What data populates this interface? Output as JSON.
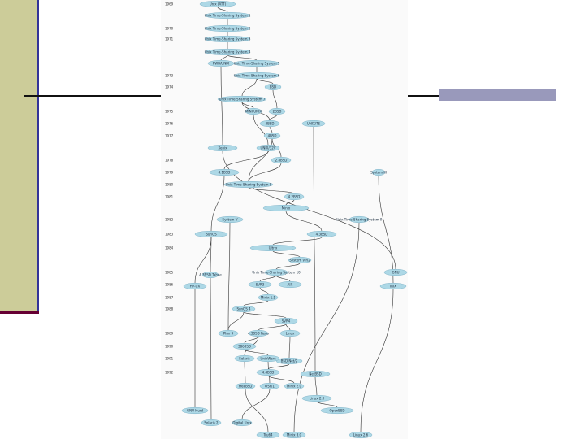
{
  "timeline": {
    "years": [
      "1969",
      "",
      "1970",
      "1971",
      "",
      "",
      "1973",
      "1974",
      "",
      "1975",
      "1976",
      "1977",
      "",
      "1978",
      "1979",
      "1980",
      "1981",
      "",
      "1982",
      "1983",
      "1984",
      "",
      "1985",
      "1986",
      "1987",
      "1988",
      "",
      "1989",
      "1990",
      "1991",
      "1992"
    ]
  },
  "nodes": [
    {
      "id": "n1",
      "label": "Unix (ATT)"
    },
    {
      "id": "n2",
      "label": "Unix Time-Sharing System 1"
    },
    {
      "id": "n3",
      "label": "Unix Time-Sharing System 2"
    },
    {
      "id": "n4",
      "label": "Unix Time-Sharing System 3"
    },
    {
      "id": "n5",
      "label": "Unix Time-Sharing System 4"
    },
    {
      "id": "n6",
      "label": "PWB/UNIX"
    },
    {
      "id": "n7",
      "label": "Unix Time-Sharing System 5"
    },
    {
      "id": "n8",
      "label": "Unix Time-Sharing System 6"
    },
    {
      "id": "n9",
      "label": "BSD"
    },
    {
      "id": "n10",
      "label": "Unix Time-Sharing System 7"
    },
    {
      "id": "n11",
      "label": "MINI-UNIX"
    },
    {
      "id": "n12",
      "label": "2BSD"
    },
    {
      "id": "n13",
      "label": "3BSD"
    },
    {
      "id": "n14",
      "label": "4BSD"
    },
    {
      "id": "n15",
      "label": "UNIX/TS"
    },
    {
      "id": "n16",
      "label": "Xenix"
    },
    {
      "id": "n17",
      "label": "UNIX/32V"
    },
    {
      "id": "n18",
      "label": "2.8BSD"
    },
    {
      "id": "n19",
      "label": "4.1BSD"
    },
    {
      "id": "n20",
      "label": "System III"
    },
    {
      "id": "n21",
      "label": "Unix Time-Sharing System 8"
    },
    {
      "id": "n22",
      "label": "4.2BSD"
    },
    {
      "id": "n23",
      "label": "Minix"
    },
    {
      "id": "n24",
      "label": "System V"
    },
    {
      "id": "n25",
      "label": "Unix Time-Sharing System 9"
    },
    {
      "id": "n26",
      "label": "SunOS"
    },
    {
      "id": "n27",
      "label": "4.3BSD"
    },
    {
      "id": "n28",
      "label": "Ultrix"
    },
    {
      "id": "n29",
      "label": "System V R2"
    },
    {
      "id": "n30",
      "label": "Unix Time-Sharing System 10"
    },
    {
      "id": "n31",
      "label": "GNU"
    },
    {
      "id": "n32",
      "label": "SVR3"
    },
    {
      "id": "n33",
      "label": "AIX"
    },
    {
      "id": "n34",
      "label": "HP-UX"
    },
    {
      "id": "n35",
      "label": "IRIX"
    },
    {
      "id": "n36",
      "label": "4.3BSD Tahoe"
    },
    {
      "id": "n37",
      "label": "Minix 1.5"
    },
    {
      "id": "n38",
      "label": "SunOS 4"
    },
    {
      "id": "n39",
      "label": "SVR4"
    },
    {
      "id": "n40",
      "label": "Plan 9"
    },
    {
      "id": "n41",
      "label": "4.3BSD Reno"
    },
    {
      "id": "n42",
      "label": "Linux"
    },
    {
      "id": "n43",
      "label": "386BSD"
    },
    {
      "id": "n44",
      "label": "BSD Net/2"
    },
    {
      "id": "n45",
      "label": "Solaris"
    },
    {
      "id": "n46",
      "label": "UnixWare"
    },
    {
      "id": "n47",
      "label": "4.4BSD"
    },
    {
      "id": "n48",
      "label": "NetBSD"
    },
    {
      "id": "n49",
      "label": "FreeBSD"
    },
    {
      "id": "n50",
      "label": "OSF/1"
    },
    {
      "id": "n51",
      "label": "Minix 2.0"
    },
    {
      "id": "n52",
      "label": "Linux 2.0"
    },
    {
      "id": "n53",
      "label": "GNU Hurd"
    },
    {
      "id": "n54",
      "label": "OpenBSD"
    },
    {
      "id": "n55",
      "label": "Solaris 2"
    },
    {
      "id": "n56",
      "label": "Digital Unix"
    },
    {
      "id": "n57",
      "label": "Tru64"
    },
    {
      "id": "n58",
      "label": "Minix 3.0"
    },
    {
      "id": "n59",
      "label": "Linux 2.6"
    }
  ]
}
